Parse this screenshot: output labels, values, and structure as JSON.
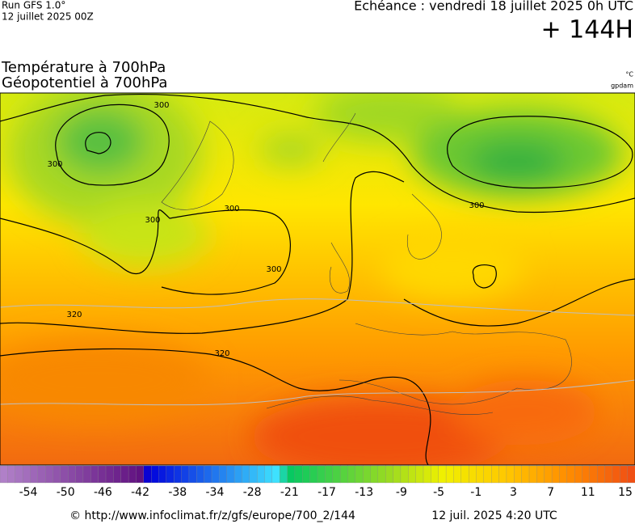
{
  "header": {
    "model": "Run GFS 1.0°",
    "run": "12 juillet 2025 00Z",
    "forecast": "Echéance : vendredi 18 juillet 2025 0h UTC",
    "lead": "+ 144H"
  },
  "titles": [
    "Température à 700hPa",
    "Géopotentiel à 700hPa"
  ],
  "units": [
    "°C",
    "gpdam"
  ],
  "map": {
    "contour_labels": [
      "300",
      "300",
      "300",
      "300",
      "300",
      "300",
      "320",
      "320"
    ]
  },
  "colorbar": {
    "labels": [
      -54,
      -50,
      -46,
      -42,
      -38,
      -34,
      -28,
      -21,
      -17,
      -13,
      -9,
      -5,
      -1,
      3,
      7,
      11,
      15
    ]
  },
  "footer": {
    "source": "© http://www.infoclimat.fr/z/gfs/europe/700_2/144",
    "timestamp": "12 juil. 2025  4:20 UTC"
  }
}
